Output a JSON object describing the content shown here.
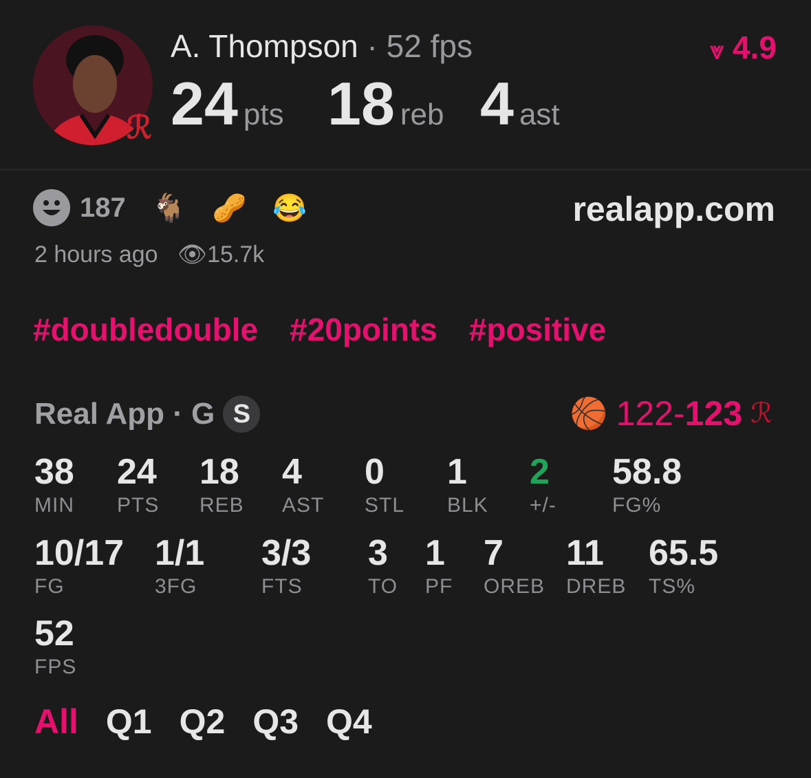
{
  "player": {
    "name": "A. Thompson",
    "fps_label": "52 fps",
    "separator": "·",
    "pts": "24",
    "pts_unit": "pts",
    "reb": "18",
    "reb_unit": "reb",
    "ast": "4",
    "ast_unit": "ast"
  },
  "rating": {
    "icon": "real-logo-icon",
    "value": "4.9"
  },
  "reactions": {
    "count": "187",
    "emojis": [
      "🐐",
      "🥜",
      "😂"
    ]
  },
  "site": "realapp.com",
  "meta": {
    "time": "2 hours ago",
    "views": "15.7k"
  },
  "tags": [
    "#doubledouble",
    "#20points",
    "#positive"
  ],
  "league": {
    "label": "Real App · G",
    "badge": "S"
  },
  "score": {
    "away": "122-",
    "home": "123"
  },
  "stats_row1": [
    {
      "v": "38",
      "l": "MIN"
    },
    {
      "v": "24",
      "l": "PTS"
    },
    {
      "v": "18",
      "l": "REB"
    },
    {
      "v": "4",
      "l": "AST"
    },
    {
      "v": "0",
      "l": "STL"
    },
    {
      "v": "1",
      "l": "BLK"
    },
    {
      "v": "2",
      "l": "+/-"
    },
    {
      "v": "58.8",
      "l": "FG%"
    }
  ],
  "stats_row2": [
    {
      "v": "10/17",
      "l": "FG"
    },
    {
      "v": "1/1",
      "l": "3FG"
    },
    {
      "v": "3/3",
      "l": "FTS"
    },
    {
      "v": "3",
      "l": "TO"
    },
    {
      "v": "1",
      "l": "PF"
    },
    {
      "v": "7",
      "l": "OREB"
    },
    {
      "v": "11",
      "l": "DREB"
    },
    {
      "v": "65.5",
      "l": "TS%"
    }
  ],
  "stats_row3": [
    {
      "v": "52",
      "l": "FPS"
    }
  ],
  "quarters": [
    "All",
    "Q1",
    "Q2",
    "Q3",
    "Q4"
  ],
  "colors": {
    "accent": "#e8106e",
    "positive": "#1fa55a",
    "background": "#1b1b1c"
  }
}
